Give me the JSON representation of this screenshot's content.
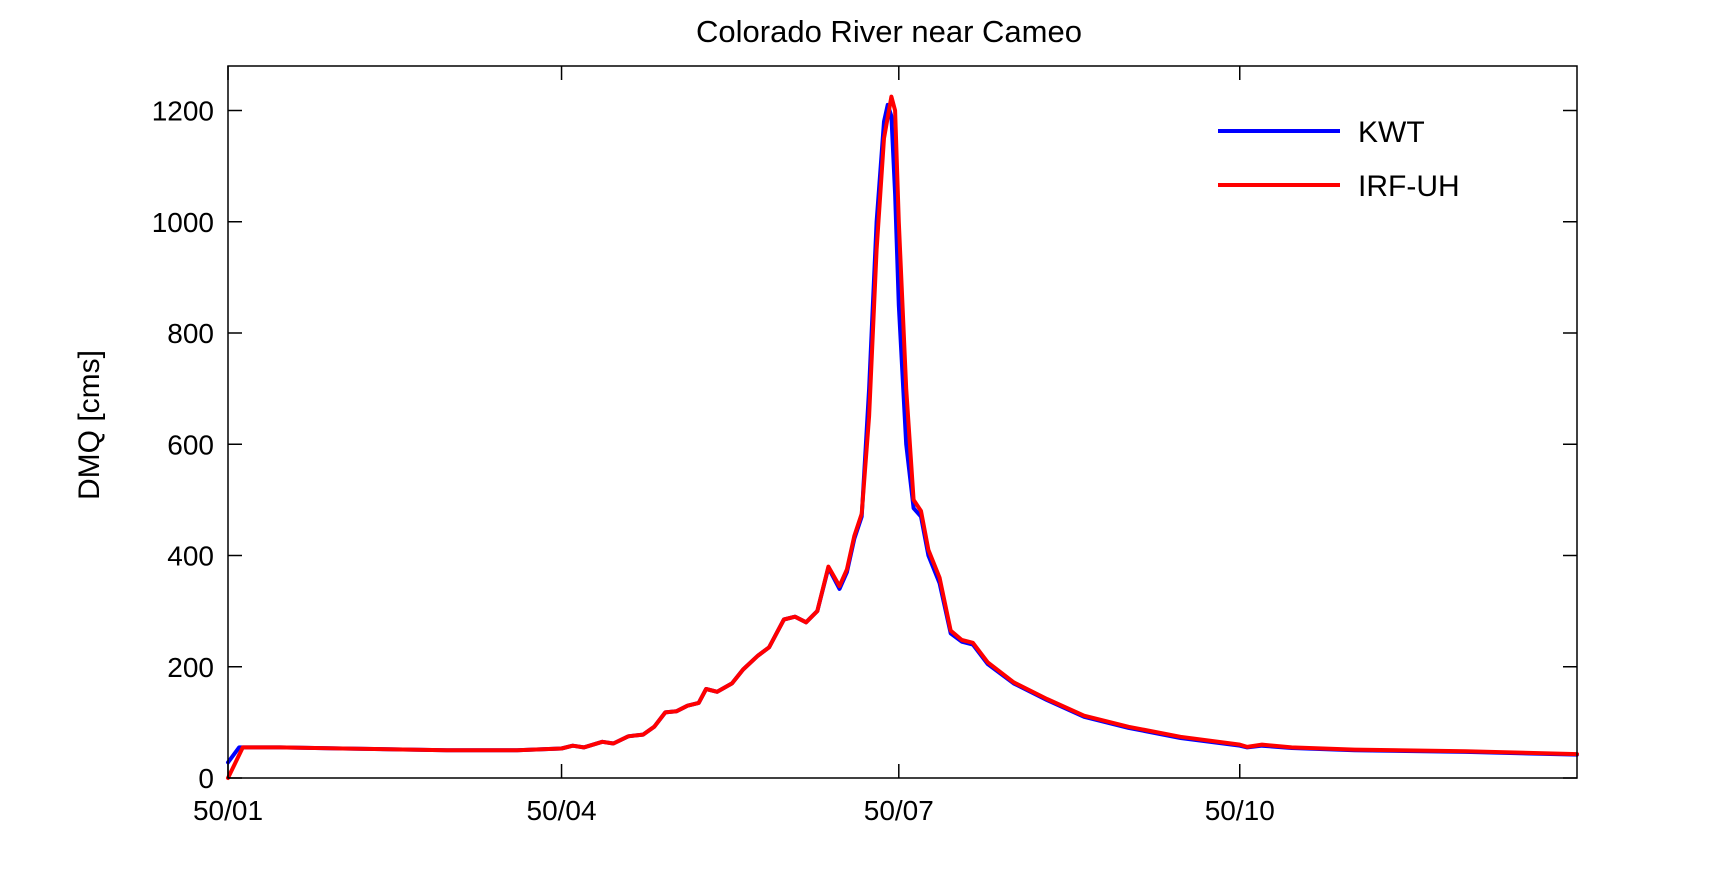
{
  "chart_data": {
    "type": "line",
    "title": "Colorado River near Cameo",
    "xlabel": "",
    "ylabel": "DMQ [cms]",
    "xlim": [
      "1950-01-01",
      "1950-12-31"
    ],
    "ylim": [
      0,
      1280
    ],
    "x_ticks": [
      {
        "date": "1950-01-01",
        "label": "50/01"
      },
      {
        "date": "1950-04-01",
        "label": "50/04"
      },
      {
        "date": "1950-07-01",
        "label": "50/07"
      },
      {
        "date": "1950-10-01",
        "label": "50/10"
      }
    ],
    "y_ticks": [
      0,
      200,
      400,
      600,
      800,
      1000,
      1200
    ],
    "grid": false,
    "legend_position": "top-right",
    "series": [
      {
        "name": "KWT",
        "color": "#0000ff",
        "points": [
          [
            "1950-01-01",
            28
          ],
          [
            "1950-01-04",
            55
          ],
          [
            "1950-01-15",
            55
          ],
          [
            "1950-02-01",
            53
          ],
          [
            "1950-03-01",
            50
          ],
          [
            "1950-03-20",
            50
          ],
          [
            "1950-04-01",
            53
          ],
          [
            "1950-04-04",
            58
          ],
          [
            "1950-04-07",
            55
          ],
          [
            "1950-04-12",
            65
          ],
          [
            "1950-04-15",
            62
          ],
          [
            "1950-04-19",
            75
          ],
          [
            "1950-04-23",
            78
          ],
          [
            "1950-04-26",
            92
          ],
          [
            "1950-04-29",
            118
          ],
          [
            "1950-05-02",
            120
          ],
          [
            "1950-05-05",
            130
          ],
          [
            "1950-05-08",
            135
          ],
          [
            "1950-05-10",
            160
          ],
          [
            "1950-05-13",
            155
          ],
          [
            "1950-05-17",
            170
          ],
          [
            "1950-05-20",
            195
          ],
          [
            "1950-05-24",
            220
          ],
          [
            "1950-05-27",
            235
          ],
          [
            "1950-05-31",
            285
          ],
          [
            "1950-06-03",
            290
          ],
          [
            "1950-06-06",
            280
          ],
          [
            "1950-06-09",
            300
          ],
          [
            "1950-06-12",
            378
          ],
          [
            "1950-06-15",
            340
          ],
          [
            "1950-06-17",
            370
          ],
          [
            "1950-06-19",
            430
          ],
          [
            "1950-06-21",
            470
          ],
          [
            "1950-06-23",
            700
          ],
          [
            "1950-06-25",
            1000
          ],
          [
            "1950-06-27",
            1180
          ],
          [
            "1950-06-28",
            1210
          ],
          [
            "1950-06-29",
            1190
          ],
          [
            "1950-06-30",
            1050
          ],
          [
            "1950-07-01",
            850
          ],
          [
            "1950-07-03",
            600
          ],
          [
            "1950-07-05",
            485
          ],
          [
            "1950-07-07",
            470
          ],
          [
            "1950-07-09",
            400
          ],
          [
            "1950-07-12",
            350
          ],
          [
            "1950-07-15",
            260
          ],
          [
            "1950-07-18",
            245
          ],
          [
            "1950-07-21",
            240
          ],
          [
            "1950-07-25",
            205
          ],
          [
            "1950-08-01",
            170
          ],
          [
            "1950-08-10",
            140
          ],
          [
            "1950-08-20",
            110
          ],
          [
            "1950-09-01",
            90
          ],
          [
            "1950-09-15",
            72
          ],
          [
            "1950-10-01",
            58
          ],
          [
            "1950-10-03",
            55
          ],
          [
            "1950-10-07",
            58
          ],
          [
            "1950-10-15",
            54
          ],
          [
            "1950-11-01",
            50
          ],
          [
            "1950-12-01",
            47
          ],
          [
            "1950-12-31",
            42
          ]
        ]
      },
      {
        "name": "IRF-UH",
        "color": "#ff0000",
        "points": [
          [
            "1950-01-01",
            0
          ],
          [
            "1950-01-05",
            55
          ],
          [
            "1950-01-15",
            55
          ],
          [
            "1950-02-01",
            53
          ],
          [
            "1950-03-01",
            50
          ],
          [
            "1950-03-20",
            50
          ],
          [
            "1950-04-01",
            53
          ],
          [
            "1950-04-04",
            58
          ],
          [
            "1950-04-07",
            55
          ],
          [
            "1950-04-12",
            65
          ],
          [
            "1950-04-15",
            62
          ],
          [
            "1950-04-19",
            75
          ],
          [
            "1950-04-23",
            78
          ],
          [
            "1950-04-26",
            92
          ],
          [
            "1950-04-29",
            118
          ],
          [
            "1950-05-02",
            120
          ],
          [
            "1950-05-05",
            130
          ],
          [
            "1950-05-08",
            135
          ],
          [
            "1950-05-10",
            160
          ],
          [
            "1950-05-13",
            155
          ],
          [
            "1950-05-17",
            170
          ],
          [
            "1950-05-20",
            195
          ],
          [
            "1950-05-24",
            220
          ],
          [
            "1950-05-27",
            235
          ],
          [
            "1950-05-31",
            285
          ],
          [
            "1950-06-03",
            290
          ],
          [
            "1950-06-06",
            280
          ],
          [
            "1950-06-09",
            300
          ],
          [
            "1950-06-12",
            380
          ],
          [
            "1950-06-15",
            345
          ],
          [
            "1950-06-17",
            375
          ],
          [
            "1950-06-19",
            435
          ],
          [
            "1950-06-21",
            475
          ],
          [
            "1950-06-23",
            650
          ],
          [
            "1950-06-25",
            950
          ],
          [
            "1950-06-27",
            1150
          ],
          [
            "1950-06-29",
            1225
          ],
          [
            "1950-06-30",
            1200
          ],
          [
            "1950-07-01",
            1000
          ],
          [
            "1950-07-03",
            700
          ],
          [
            "1950-07-05",
            500
          ],
          [
            "1950-07-07",
            480
          ],
          [
            "1950-07-09",
            410
          ],
          [
            "1950-07-12",
            360
          ],
          [
            "1950-07-15",
            265
          ],
          [
            "1950-07-18",
            248
          ],
          [
            "1950-07-21",
            243
          ],
          [
            "1950-07-25",
            208
          ],
          [
            "1950-08-01",
            172
          ],
          [
            "1950-08-10",
            142
          ],
          [
            "1950-08-20",
            112
          ],
          [
            "1950-09-01",
            92
          ],
          [
            "1950-09-15",
            74
          ],
          [
            "1950-10-01",
            60
          ],
          [
            "1950-10-03",
            56
          ],
          [
            "1950-10-07",
            60
          ],
          [
            "1950-10-15",
            55
          ],
          [
            "1950-11-01",
            51
          ],
          [
            "1950-12-01",
            48
          ],
          [
            "1950-12-31",
            43
          ]
        ]
      }
    ]
  }
}
